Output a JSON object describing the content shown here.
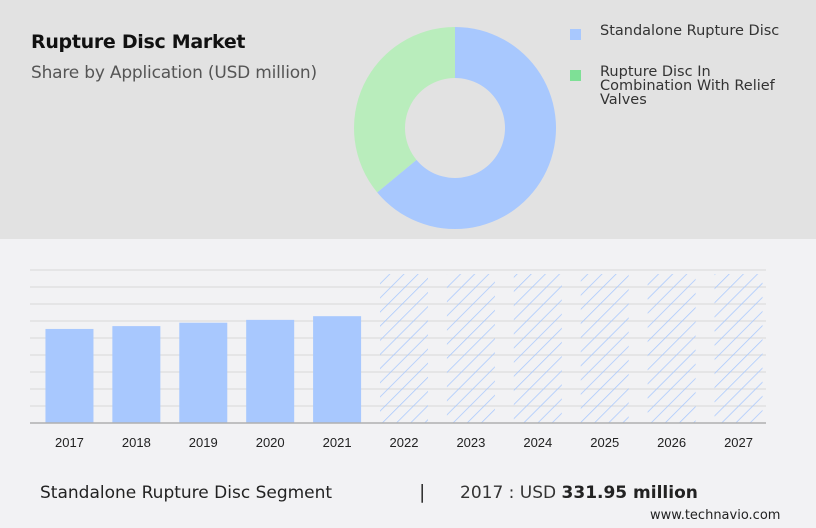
{
  "header": {
    "title": "Rupture Disc Market",
    "subtitle": "Share by Application (USD million)"
  },
  "legend": [
    {
      "label": "Standalone Rupture Disc",
      "color": "#a8c8fe"
    },
    {
      "label": "Rupture Disc In Combination With Relief Valves",
      "color": "#7ee096"
    }
  ],
  "footer": {
    "segment": "Standalone Rupture Disc Segment",
    "separator": "|",
    "year_label": "2017 : USD ",
    "value": "331.95 million",
    "site": "www.technavio.com"
  },
  "colors": {
    "bar": "#a8c8fe",
    "donut_blue": "#a8c8fe",
    "donut_green": "#b9edbc",
    "forecast_hatch": "#a8c8fe",
    "grid": "#d8d8d8",
    "axis": "#b0b0b0"
  },
  "chart_data": [
    {
      "type": "pie",
      "title": "Rupture Disc Market",
      "subtitle": "Share by Application (USD million)",
      "donut": true,
      "categories": [
        "Standalone Rupture Disc",
        "Rupture Disc In Combination With Relief Valves"
      ],
      "values": [
        64,
        36
      ],
      "legend_position": "right"
    },
    {
      "type": "bar",
      "title": "Standalone Rupture Disc Segment",
      "categories": [
        "2017",
        "2018",
        "2019",
        "2020",
        "2021",
        "2022",
        "2023",
        "2024",
        "2025",
        "2026",
        "2027"
      ],
      "values": [
        331.95,
        342,
        354,
        364,
        377,
        null,
        null,
        null,
        null,
        null,
        null
      ],
      "forecast_years": [
        "2022",
        "2023",
        "2024",
        "2025",
        "2026",
        "2027"
      ],
      "xlabel": "",
      "ylabel": "",
      "grid": true,
      "ylim": [
        0,
        540
      ],
      "annotation": "2017 : USD 331.95 million"
    }
  ]
}
